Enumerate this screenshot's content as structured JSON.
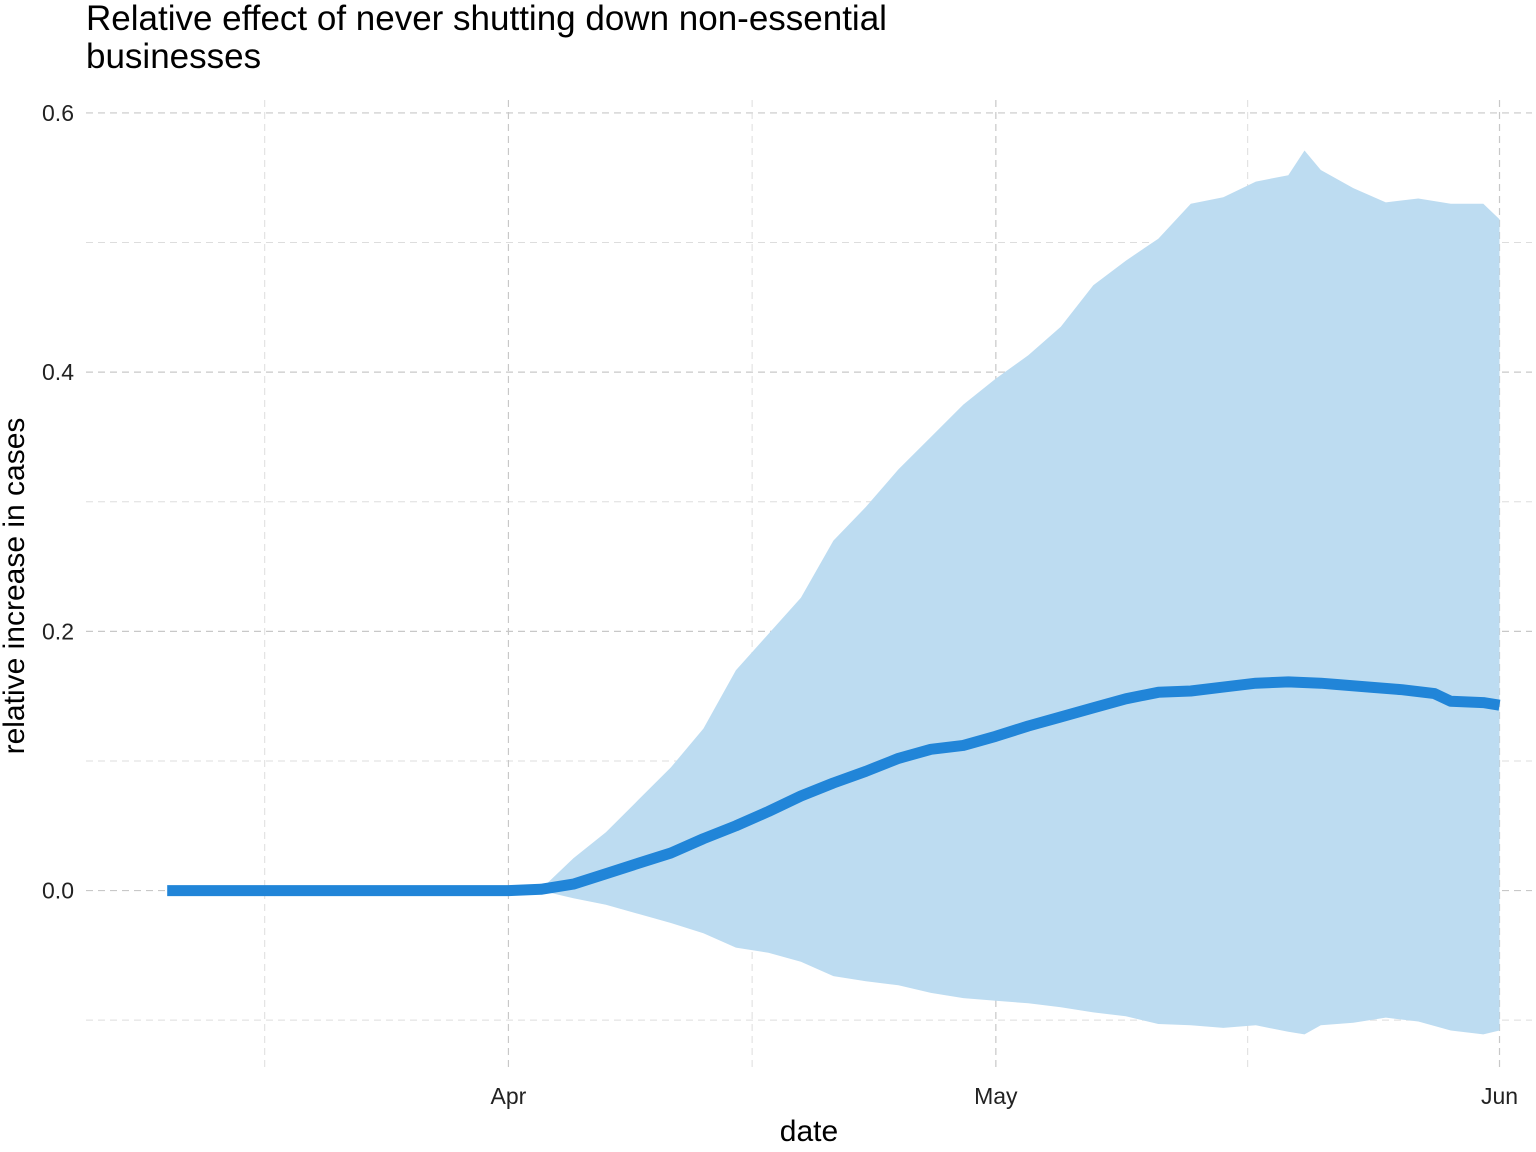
{
  "chart_data": {
    "type": "area",
    "title": "Relative effect of never shutting down non-essential businesses",
    "xlabel": "date",
    "ylabel": "relative increase in cases",
    "x_ticks": [
      {
        "label": "Apr",
        "date": "2020-04-01"
      },
      {
        "label": "May",
        "date": "2020-05-01"
      },
      {
        "label": "Jun",
        "date": "2020-06-01"
      }
    ],
    "y_ticks": [
      "0.0",
      "0.2",
      "0.4",
      "0.6"
    ],
    "y_tick_values": [
      0,
      0.2,
      0.4,
      0.6
    ],
    "xlim": [
      "2020-03-06",
      "2020-06-03"
    ],
    "ylim": [
      -0.14,
      0.61
    ],
    "grid": true,
    "colors": {
      "line": "#2185d8",
      "band": "#bddcf1",
      "grid": "#c8c8c8"
    },
    "series": [
      {
        "kind": "line",
        "x": [
          "2020-03-11",
          "2020-03-15",
          "2020-03-20",
          "2020-03-25",
          "2020-03-30",
          "2020-04-01",
          "2020-04-03",
          "2020-04-05",
          "2020-04-07",
          "2020-04-09",
          "2020-04-11",
          "2020-04-13",
          "2020-04-15",
          "2020-04-17",
          "2020-04-19",
          "2020-04-21",
          "2020-04-23",
          "2020-04-25",
          "2020-04-27",
          "2020-04-29",
          "2020-05-01",
          "2020-05-03",
          "2020-05-05",
          "2020-05-07",
          "2020-05-09",
          "2020-05-11",
          "2020-05-13",
          "2020-05-15",
          "2020-05-17",
          "2020-05-19",
          "2020-05-21",
          "2020-05-22",
          "2020-05-24",
          "2020-05-26",
          "2020-05-28",
          "2020-05-29",
          "2020-05-31",
          "2020-06-01"
        ],
        "y": [
          0,
          0,
          0,
          0,
          0,
          0,
          0.001,
          0.005,
          0.013,
          0.021,
          0.029,
          0.04,
          0.05,
          0.061,
          0.073,
          0.083,
          0.092,
          0.102,
          0.109,
          0.112,
          0.119,
          0.127,
          0.134,
          0.141,
          0.148,
          0.153,
          0.154,
          0.157,
          0.16,
          0.161,
          0.16,
          0.159,
          0.157,
          0.155,
          0.152,
          0.146,
          0.145,
          0.143
        ]
      },
      {
        "kind": "band",
        "x": [
          "2020-04-03",
          "2020-04-05",
          "2020-04-07",
          "2020-04-09",
          "2020-04-11",
          "2020-04-13",
          "2020-04-15",
          "2020-04-17",
          "2020-04-19",
          "2020-04-21",
          "2020-04-23",
          "2020-04-25",
          "2020-04-27",
          "2020-04-29",
          "2020-05-01",
          "2020-05-03",
          "2020-05-05",
          "2020-05-07",
          "2020-05-09",
          "2020-05-11",
          "2020-05-13",
          "2020-05-15",
          "2020-05-17",
          "2020-05-19",
          "2020-05-20",
          "2020-05-21",
          "2020-05-23",
          "2020-05-25",
          "2020-05-27",
          "2020-05-29",
          "2020-05-31",
          "2020-06-01"
        ],
        "upper": [
          0.001,
          0.025,
          0.045,
          0.07,
          0.095,
          0.125,
          0.17,
          0.198,
          0.226,
          0.27,
          0.296,
          0.325,
          0.35,
          0.375,
          0.395,
          0.413,
          0.435,
          0.467,
          0.486,
          0.503,
          0.53,
          0.535,
          0.547,
          0.552,
          0.571,
          0.556,
          0.542,
          0.531,
          0.534,
          0.53,
          0.53,
          0.518
        ],
        "lower": [
          0,
          -0.006,
          -0.011,
          -0.018,
          -0.025,
          -0.033,
          -0.044,
          -0.048,
          -0.055,
          -0.066,
          -0.07,
          -0.073,
          -0.079,
          -0.083,
          -0.085,
          -0.087,
          -0.09,
          -0.094,
          -0.097,
          -0.103,
          -0.104,
          -0.106,
          -0.104,
          -0.109,
          -0.111,
          -0.104,
          -0.102,
          -0.098,
          -0.101,
          -0.108,
          -0.111,
          -0.108
        ]
      }
    ]
  }
}
